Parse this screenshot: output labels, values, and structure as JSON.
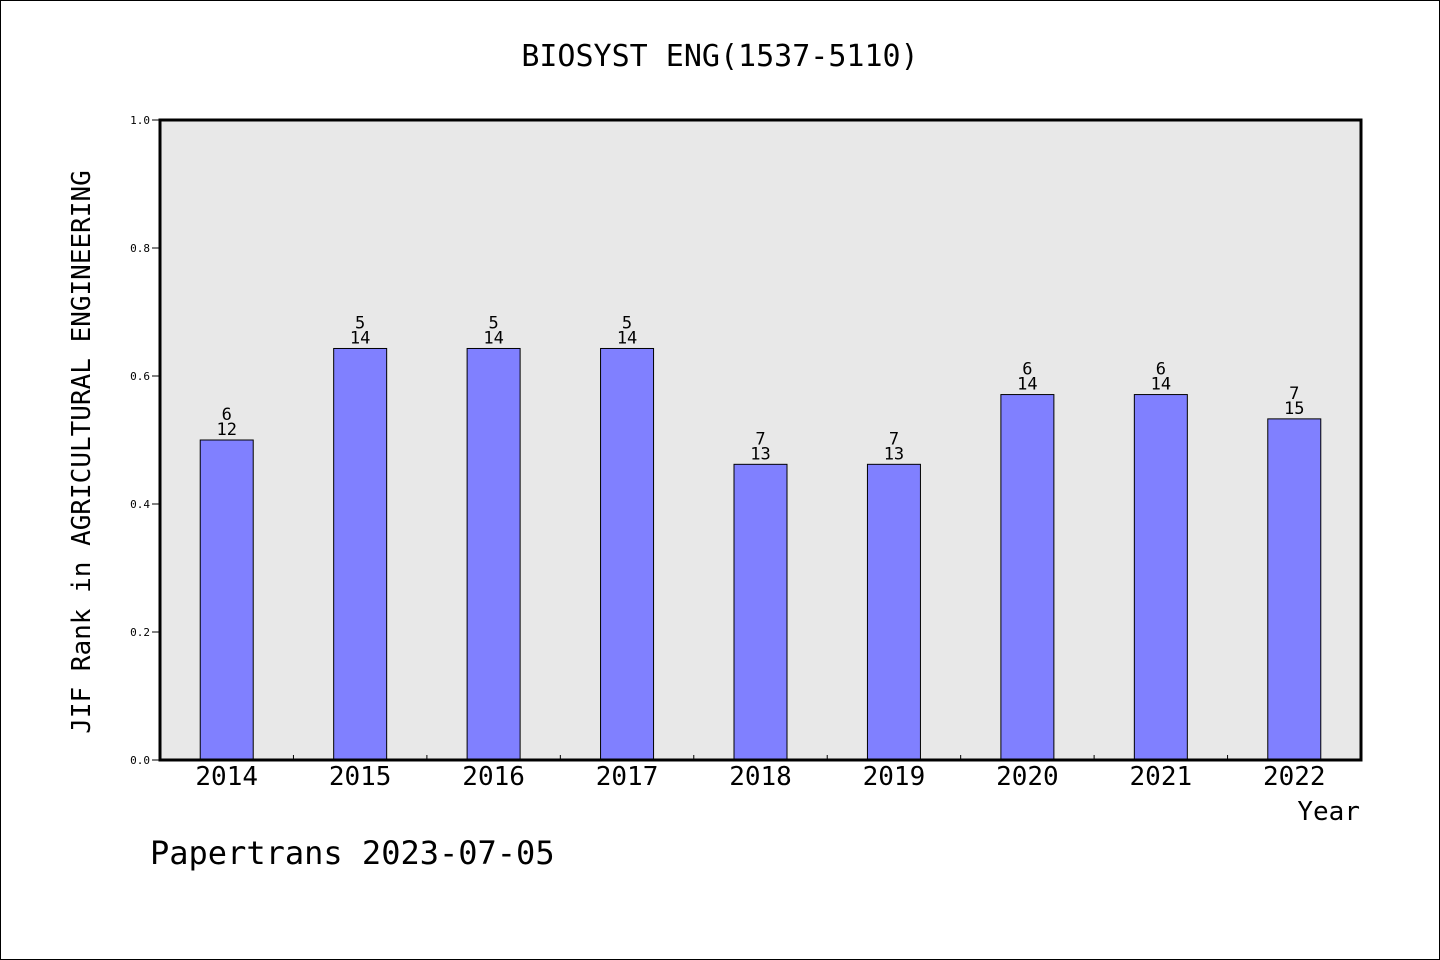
{
  "chart_data": {
    "type": "bar",
    "title": "BIOSYST ENG(1537-5110)",
    "xlabel": "Year",
    "ylabel": "JIF Rank in AGRICULTURAL ENGINEERING",
    "ylim": [
      0,
      1.0
    ],
    "yticks": [
      "0.0",
      "0.2",
      "0.4",
      "0.6",
      "0.8",
      "1.0"
    ],
    "categories": [
      "2014",
      "2015",
      "2016",
      "2017",
      "2018",
      "2019",
      "2020",
      "2021",
      "2022"
    ],
    "values": [
      0.5,
      0.643,
      0.643,
      0.643,
      0.462,
      0.462,
      0.571,
      0.571,
      0.533
    ],
    "rank_labels": [
      "6",
      "5",
      "5",
      "5",
      "7",
      "7",
      "6",
      "6",
      "7"
    ],
    "total_labels": [
      "12",
      "14",
      "14",
      "14",
      "13",
      "13",
      "14",
      "14",
      "15"
    ],
    "bar_color": "#8080ff",
    "plot_background": "#e8e8e8",
    "grid": false
  },
  "footer": {
    "watermark": "Papertrans 2023-07-05"
  }
}
